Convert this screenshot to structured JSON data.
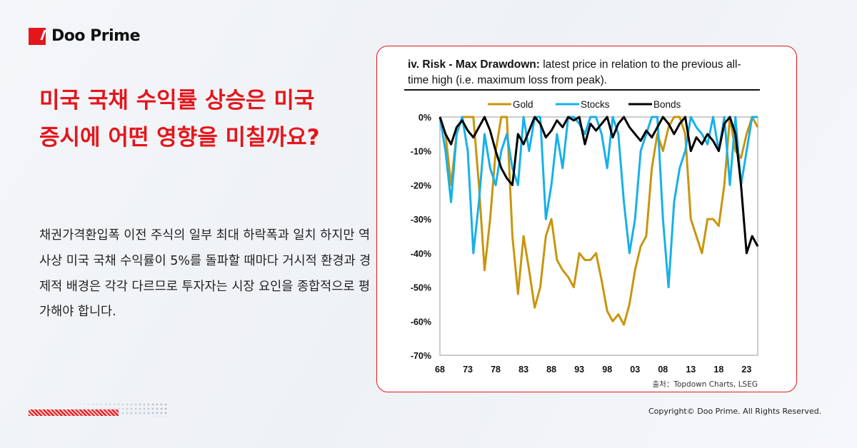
{
  "brand": {
    "name": "Doo Prime",
    "accent": "#e4161c"
  },
  "headline": "미국 국채 수익률 상승은 미국증시에 어떤 영향을 미칠까요?",
  "body": "채권가격환입폭 이전 주식의 일부 최대 하락폭과 일치 하지만 역사상 미국 국채 수익률이 5%를 돌파할 때마다 거시적 환경과 경제적 배경은 각각 다르므로 투자자는 시장 요인을 종합적으로 평가해야 합니다.",
  "copyright": "Copyright© Doo Prime. All Rights Reserved.",
  "source": "출처：Topdown Charts, LSEG",
  "chart_data": {
    "type": "line",
    "title_bold": "iv. Risk - Max Drawdown:",
    "title_rest": " latest price in relation to the previous all-time high (i.e. maximum loss from peak).",
    "legend_placement": "top",
    "xlim": [
      1968,
      2025
    ],
    "ylim": [
      -70,
      0
    ],
    "x_ticks": [
      "68",
      "73",
      "78",
      "83",
      "88",
      "93",
      "98",
      "03",
      "08",
      "13",
      "18",
      "23"
    ],
    "x_tick_years": [
      1968,
      1973,
      1978,
      1983,
      1988,
      1993,
      1998,
      2003,
      2008,
      2013,
      2018,
      2023
    ],
    "y_ticks": [
      "0%",
      "-10%",
      "-20%",
      "-30%",
      "-40%",
      "-50%",
      "-60%",
      "-70%"
    ],
    "y_tick_values": [
      0,
      -10,
      -20,
      -30,
      -40,
      -50,
      -60,
      -70
    ],
    "x": [
      1968,
      1969,
      1970,
      1971,
      1972,
      1973,
      1974,
      1975,
      1976,
      1977,
      1978,
      1979,
      1980,
      1981,
      1982,
      1983,
      1984,
      1985,
      1986,
      1987,
      1988,
      1989,
      1990,
      1991,
      1992,
      1993,
      1994,
      1995,
      1996,
      1997,
      1998,
      1999,
      2000,
      2001,
      2002,
      2003,
      2004,
      2005,
      2006,
      2007,
      2008,
      2009,
      2010,
      2011,
      2012,
      2013,
      2014,
      2015,
      2016,
      2017,
      2018,
      2019,
      2020,
      2021,
      2022,
      2023,
      2024,
      2025
    ],
    "series": [
      {
        "name": "Gold",
        "color": "#c8960c",
        "values": [
          0,
          -5,
          -20,
          -5,
          0,
          0,
          0,
          -20,
          -45,
          -30,
          -10,
          0,
          0,
          -35,
          -52,
          -35,
          -45,
          -56,
          -50,
          -35,
          -30,
          -42,
          -45,
          -47,
          -50,
          -40,
          -42,
          -42,
          -40,
          -48,
          -57,
          -60,
          -58,
          -61,
          -55,
          -45,
          -38,
          -35,
          -15,
          -5,
          -10,
          -3,
          0,
          0,
          -5,
          -30,
          -35,
          -40,
          -30,
          -30,
          -32,
          -20,
          0,
          -10,
          -12,
          -5,
          0,
          -3
        ]
      },
      {
        "name": "Stocks",
        "color": "#17b0ea",
        "values": [
          0,
          -10,
          -25,
          -5,
          0,
          -10,
          -40,
          -25,
          -5,
          -15,
          -20,
          -10,
          -5,
          -15,
          -20,
          0,
          -10,
          0,
          0,
          -30,
          -20,
          -5,
          -15,
          0,
          0,
          -2,
          -5,
          0,
          0,
          -5,
          -15,
          0,
          -5,
          -25,
          -40,
          -30,
          -10,
          -5,
          0,
          0,
          -30,
          -50,
          -25,
          -15,
          -10,
          0,
          -3,
          -5,
          -8,
          0,
          -10,
          0,
          -20,
          0,
          -20,
          -10,
          0,
          0
        ]
      },
      {
        "name": "Bonds",
        "color": "#000000",
        "values": [
          0,
          -5,
          -8,
          -3,
          -1,
          -4,
          -6,
          -3,
          0,
          -4,
          -10,
          -15,
          -18,
          -20,
          -5,
          -8,
          -4,
          0,
          -2,
          -6,
          -4,
          -1,
          -3,
          0,
          -1,
          0,
          -8,
          -2,
          -4,
          -2,
          0,
          -6,
          -2,
          0,
          -3,
          -5,
          -7,
          -4,
          -6,
          -3,
          0,
          -2,
          -5,
          -2,
          0,
          -10,
          -6,
          -8,
          -5,
          -7,
          -10,
          -2,
          0,
          -5,
          -20,
          -40,
          -35,
          -38
        ]
      }
    ]
  }
}
